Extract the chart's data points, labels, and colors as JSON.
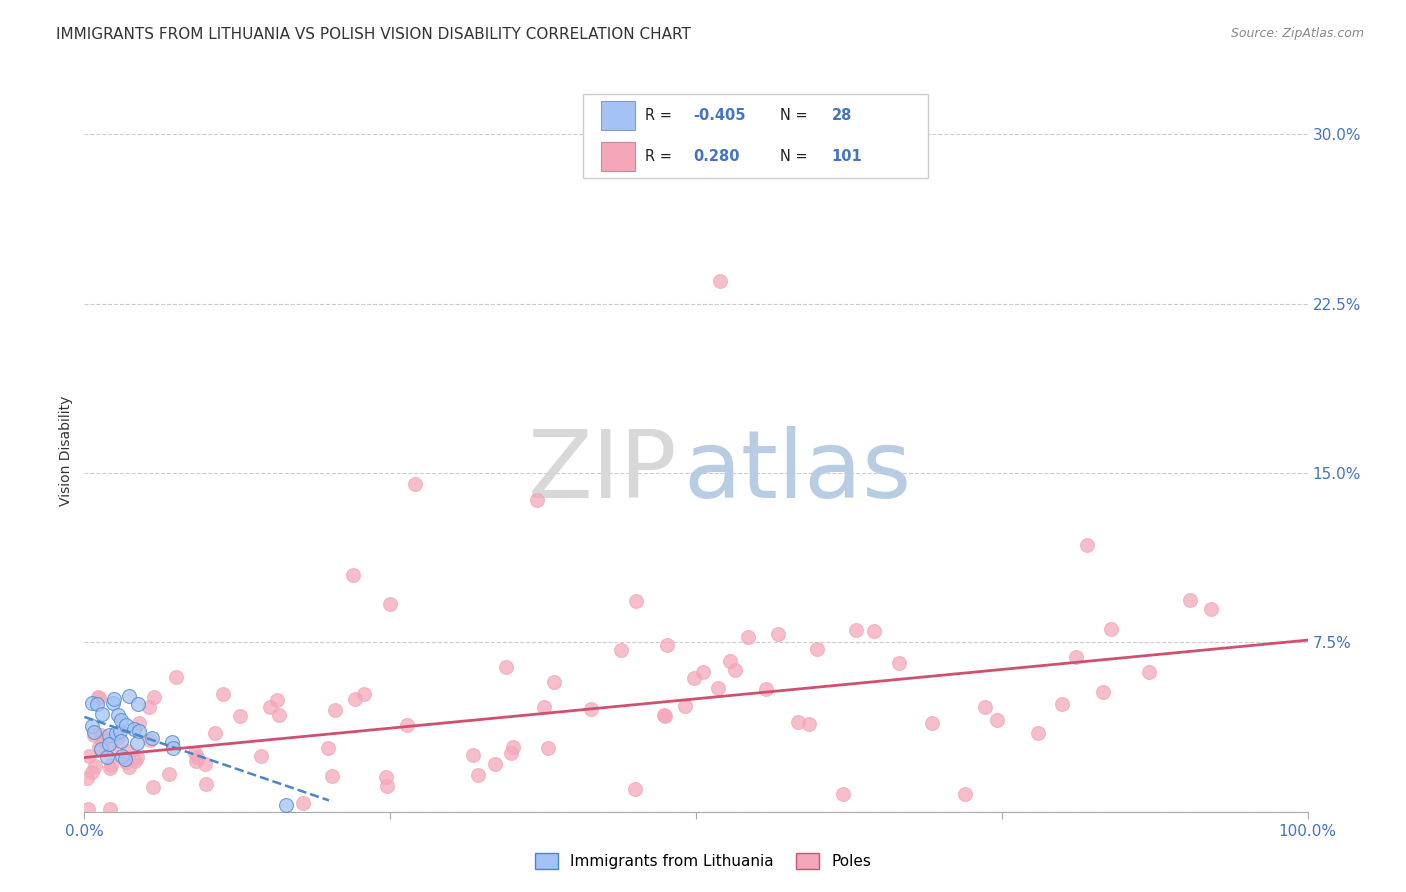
{
  "title": "IMMIGRANTS FROM LITHUANIA VS POLISH VISION DISABILITY CORRELATION CHART",
  "source": "Source: ZipAtlas.com",
  "ylabel": "Vision Disability",
  "xlim": [
    0.0,
    1.0
  ],
  "ylim": [
    0.0,
    0.32
  ],
  "yticks": [
    0.0,
    0.075,
    0.15,
    0.225,
    0.3
  ],
  "xticks": [
    0.0,
    0.25,
    0.5,
    0.75,
    1.0
  ],
  "xtick_labels": [
    "0.0%",
    "",
    "",
    "",
    "100.0%"
  ],
  "axis_color": "#4472C4",
  "background_color": "#ffffff",
  "legend_R1": "-0.405",
  "legend_N1": "28",
  "legend_R2": "0.280",
  "legend_N2": "101",
  "color_blue": "#a4c2f4",
  "color_pink": "#f4a7b9",
  "color_blue_line": "#4a86c8",
  "color_pink_line": "#d05070",
  "grid_color": "#cccccc",
  "title_fontsize": 11,
  "label_fontsize": 10,
  "tick_fontsize": 11,
  "watermark_ZIP_color": "#d8d8d8",
  "watermark_atlas_color": "#b8cce4"
}
